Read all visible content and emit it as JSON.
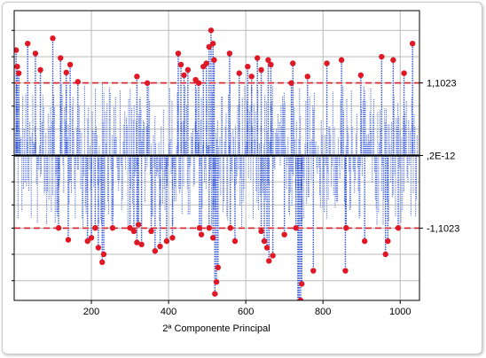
{
  "chart_data": {
    "type": "scatter",
    "title": "",
    "xlabel": "2ª Componente Principal",
    "ylabel": "",
    "xlim": [
      0,
      1050
    ],
    "ylim": [
      -2.2,
      2.2
    ],
    "x_ticks": [
      200,
      400,
      600,
      800,
      1000
    ],
    "x_tick_labels": [
      "200",
      "400",
      "600",
      "800",
      "1000"
    ],
    "y_gridlines": [
      -1.9,
      -1.5,
      -1.1023,
      -0.75,
      -0.4,
      0,
      0.4,
      0.75,
      1.1023,
      1.5,
      1.9
    ],
    "reference_lines": [
      {
        "value": 1.1023,
        "label": "1,1023",
        "style": "dashed",
        "color": "#d8202a"
      },
      {
        "value": 0,
        "label": ",2E-12",
        "style": "solid",
        "color": "#000000"
      },
      {
        "value": -1.1023,
        "label": "-1,1023",
        "style": "dashed",
        "color": "#d8202a"
      }
    ],
    "grid": true,
    "colors": {
      "stems": "#2a4fd8",
      "outliers": "#e01826",
      "limits": "#d8202a",
      "center": "#000000"
    },
    "outliers": [
      {
        "x": 5,
        "y": 1.6
      },
      {
        "x": 8,
        "y": 1.35
      },
      {
        "x": 12,
        "y": 1.25
      },
      {
        "x": 35,
        "y": 1.7
      },
      {
        "x": 55,
        "y": 1.55
      },
      {
        "x": 68,
        "y": 1.3
      },
      {
        "x": 100,
        "y": 1.78
      },
      {
        "x": 120,
        "y": 1.48
      },
      {
        "x": 135,
        "y": 1.26
      },
      {
        "x": 145,
        "y": 1.38
      },
      {
        "x": 165,
        "y": 1.12
      },
      {
        "x": 115,
        "y": -1.1
      },
      {
        "x": 140,
        "y": -1.28
      },
      {
        "x": 190,
        "y": -1.3
      },
      {
        "x": 200,
        "y": -1.25
      },
      {
        "x": 210,
        "y": -1.1
      },
      {
        "x": 218,
        "y": -1.4
      },
      {
        "x": 228,
        "y": -1.62
      },
      {
        "x": 232,
        "y": -1.5
      },
      {
        "x": 255,
        "y": -1.1
      },
      {
        "x": 300,
        "y": -1.1
      },
      {
        "x": 310,
        "y": -1.15
      },
      {
        "x": 318,
        "y": -1.32
      },
      {
        "x": 322,
        "y": -1.05
      },
      {
        "x": 330,
        "y": -1.35
      },
      {
        "x": 355,
        "y": -1.15
      },
      {
        "x": 365,
        "y": -1.45
      },
      {
        "x": 378,
        "y": -1.38
      },
      {
        "x": 395,
        "y": -1.3
      },
      {
        "x": 410,
        "y": -1.25
      },
      {
        "x": 318,
        "y": 1.2
      },
      {
        "x": 345,
        "y": 1.1
      },
      {
        "x": 425,
        "y": 1.55
      },
      {
        "x": 432,
        "y": 1.38
      },
      {
        "x": 440,
        "y": 1.22
      },
      {
        "x": 450,
        "y": 1.3
      },
      {
        "x": 470,
        "y": 1.15
      },
      {
        "x": 478,
        "y": 1.1
      },
      {
        "x": 490,
        "y": 1.35
      },
      {
        "x": 498,
        "y": 1.4
      },
      {
        "x": 505,
        "y": 1.65
      },
      {
        "x": 510,
        "y": 1.9
      },
      {
        "x": 515,
        "y": 1.7
      },
      {
        "x": 518,
        "y": 1.45
      },
      {
        "x": 480,
        "y": -1.1
      },
      {
        "x": 485,
        "y": -1.2
      },
      {
        "x": 505,
        "y": -1.1
      },
      {
        "x": 515,
        "y": -1.25
      },
      {
        "x": 520,
        "y": -2.1
      },
      {
        "x": 524,
        "y": -1.92
      },
      {
        "x": 528,
        "y": -1.7
      },
      {
        "x": 560,
        "y": -1.1
      },
      {
        "x": 572,
        "y": -1.3
      },
      {
        "x": 558,
        "y": 1.55
      },
      {
        "x": 583,
        "y": 1.25
      },
      {
        "x": 605,
        "y": 1.35
      },
      {
        "x": 615,
        "y": 1.2
      },
      {
        "x": 630,
        "y": 1.48
      },
      {
        "x": 640,
        "y": 1.3
      },
      {
        "x": 658,
        "y": 1.45
      },
      {
        "x": 665,
        "y": 1.38
      },
      {
        "x": 640,
        "y": -1.15
      },
      {
        "x": 648,
        "y": -1.3
      },
      {
        "x": 655,
        "y": -1.4
      },
      {
        "x": 660,
        "y": -1.6
      },
      {
        "x": 670,
        "y": -1.52
      },
      {
        "x": 700,
        "y": -1.2
      },
      {
        "x": 718,
        "y": 1.1
      },
      {
        "x": 722,
        "y": 1.4
      },
      {
        "x": 730,
        "y": -1.1
      },
      {
        "x": 735,
        "y": -2.55
      },
      {
        "x": 738,
        "y": -2.4
      },
      {
        "x": 742,
        "y": -2.2
      },
      {
        "x": 745,
        "y": -1.95
      },
      {
        "x": 775,
        "y": -1.75
      },
      {
        "x": 760,
        "y": 1.2
      },
      {
        "x": 810,
        "y": 1.4
      },
      {
        "x": 848,
        "y": 1.45
      },
      {
        "x": 858,
        "y": -1.75
      },
      {
        "x": 860,
        "y": -1.1
      },
      {
        "x": 898,
        "y": 1.22
      },
      {
        "x": 908,
        "y": -1.3
      },
      {
        "x": 952,
        "y": 1.5
      },
      {
        "x": 962,
        "y": -1.5
      },
      {
        "x": 968,
        "y": -1.3
      },
      {
        "x": 982,
        "y": 1.45
      },
      {
        "x": 995,
        "y": -1.1
      },
      {
        "x": 1010,
        "y": 1.25
      },
      {
        "x": 1032,
        "y": 1.7
      }
    ]
  }
}
